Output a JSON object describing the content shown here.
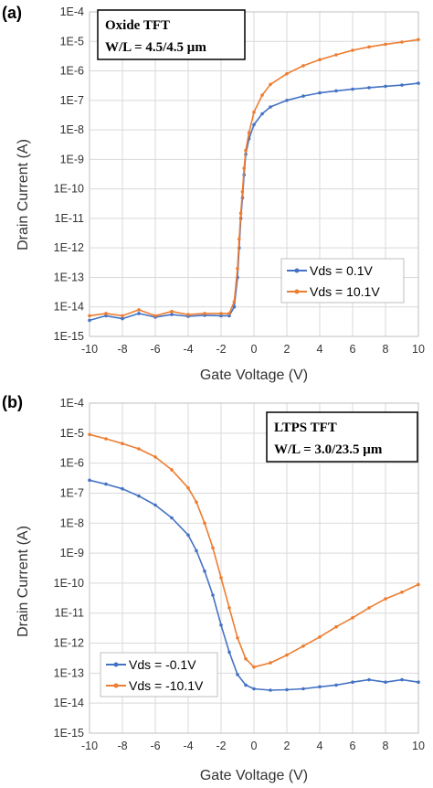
{
  "colors": {
    "series_blue": "#4472c4",
    "series_orange": "#ed7d31",
    "grid": "#d9d9d9"
  },
  "chart_data": [
    {
      "type": "line",
      "panel_label": "(a)",
      "xlabel": "Gate Voltage (V)",
      "ylabel": "Drain Current (A)",
      "xlim": [
        -10,
        10
      ],
      "ylim": [
        1e-15,
        0.0001
      ],
      "yscale": "log",
      "xticks": [
        "-10",
        "-8",
        "-6",
        "-4",
        "-2",
        "0",
        "2",
        "4",
        "6",
        "8",
        "10"
      ],
      "yticks": [
        "1E-15",
        "1E-14",
        "1E-13",
        "1E-12",
        "1E-11",
        "1E-10",
        "1E-9",
        "1E-8",
        "1E-7",
        "1E-6",
        "1E-5",
        "1E-4"
      ],
      "grid": true,
      "annotation": [
        "Oxide TFT",
        "W/L = 4.5/4.5 μm"
      ],
      "legend": {
        "placement": "lower-right",
        "entries": [
          "Vds = 0.1V",
          "Vds = 10.1V"
        ]
      },
      "series": [
        {
          "name": "Vds = 0.1V",
          "color": "#4472c4",
          "points": [
            [
              -10,
              3.5e-15
            ],
            [
              -9,
              5e-15
            ],
            [
              -8,
              4e-15
            ],
            [
              -7,
              6e-15
            ],
            [
              -6,
              4.5e-15
            ],
            [
              -5,
              5.5e-15
            ],
            [
              -4,
              4.8e-15
            ],
            [
              -3,
              5.2e-15
            ],
            [
              -2,
              5e-15
            ],
            [
              -1.5,
              5e-15
            ],
            [
              -1.2,
              1e-14
            ],
            [
              -1,
              1e-13
            ],
            [
              -0.9,
              1e-12
            ],
            [
              -0.8,
              1e-11
            ],
            [
              -0.7,
              5e-11
            ],
            [
              -0.6,
              3e-10
            ],
            [
              -0.5,
              1.5e-09
            ],
            [
              -0.3,
              5e-09
            ],
            [
              0,
              1.5e-08
            ],
            [
              0.5,
              3.5e-08
            ],
            [
              1,
              6e-08
            ],
            [
              2,
              1e-07
            ],
            [
              3,
              1.4e-07
            ],
            [
              4,
              1.8e-07
            ],
            [
              5,
              2.1e-07
            ],
            [
              6,
              2.4e-07
            ],
            [
              7,
              2.7e-07
            ],
            [
              8,
              3e-07
            ],
            [
              9,
              3.3e-07
            ],
            [
              10,
              3.8e-07
            ]
          ]
        },
        {
          "name": "Vds = 10.1V",
          "color": "#ed7d31",
          "points": [
            [
              -10,
              5e-15
            ],
            [
              -9,
              6e-15
            ],
            [
              -8,
              5e-15
            ],
            [
              -7,
              8e-15
            ],
            [
              -6,
              5e-15
            ],
            [
              -5,
              7e-15
            ],
            [
              -4,
              5.5e-15
            ],
            [
              -3,
              6e-15
            ],
            [
              -2,
              6e-15
            ],
            [
              -1.5,
              6e-15
            ],
            [
              -1.2,
              1.5e-14
            ],
            [
              -1,
              2e-13
            ],
            [
              -0.9,
              2e-12
            ],
            [
              -0.8,
              1.5e-11
            ],
            [
              -0.7,
              8e-11
            ],
            [
              -0.6,
              5e-10
            ],
            [
              -0.5,
              2e-09
            ],
            [
              -0.3,
              8e-09
            ],
            [
              0,
              4e-08
            ],
            [
              0.5,
              1.5e-07
            ],
            [
              1,
              3.5e-07
            ],
            [
              2,
              8e-07
            ],
            [
              3,
              1.5e-06
            ],
            [
              4,
              2.4e-06
            ],
            [
              5,
              3.5e-06
            ],
            [
              6,
              5e-06
            ],
            [
              7,
              6.5e-06
            ],
            [
              8,
              8e-06
            ],
            [
              9,
              9.5e-06
            ],
            [
              10,
              1.15e-05
            ]
          ]
        }
      ]
    },
    {
      "type": "line",
      "panel_label": "(b)",
      "xlabel": "Gate Voltage (V)",
      "ylabel": "Drain Current (A)",
      "xlim": [
        -10,
        10
      ],
      "ylim": [
        1e-15,
        0.0001
      ],
      "yscale": "log",
      "xticks": [
        "-10",
        "-8",
        "-6",
        "-4",
        "-2",
        "0",
        "2",
        "4",
        "6",
        "8",
        "10"
      ],
      "yticks": [
        "1E-15",
        "1E-14",
        "1E-13",
        "1E-12",
        "1E-11",
        "1E-10",
        "1E-9",
        "1E-8",
        "1E-7",
        "1E-6",
        "1E-5",
        "1E-4"
      ],
      "grid": true,
      "annotation": [
        "LTPS TFT",
        "W/L = 3.0/23.5 μm"
      ],
      "legend": {
        "placement": "lower-left",
        "entries": [
          "Vds = -0.1V",
          "Vds = -10.1V"
        ]
      },
      "series": [
        {
          "name": "Vds = -0.1V",
          "color": "#4472c4",
          "points": [
            [
              -10,
              2.7e-07
            ],
            [
              -9,
              2e-07
            ],
            [
              -8,
              1.4e-07
            ],
            [
              -7,
              8e-08
            ],
            [
              -6,
              4e-08
            ],
            [
              -5,
              1.5e-08
            ],
            [
              -4,
              4e-09
            ],
            [
              -3.5,
              1.2e-09
            ],
            [
              -3,
              2.5e-10
            ],
            [
              -2.5,
              4e-11
            ],
            [
              -2,
              4e-12
            ],
            [
              -1.5,
              5e-13
            ],
            [
              -1,
              9e-14
            ],
            [
              -0.5,
              4e-14
            ],
            [
              0,
              3e-14
            ],
            [
              1,
              2.7e-14
            ],
            [
              2,
              2.8e-14
            ],
            [
              3,
              3e-14
            ],
            [
              4,
              3.5e-14
            ],
            [
              5,
              4e-14
            ],
            [
              6,
              5e-14
            ],
            [
              7,
              6e-14
            ],
            [
              8,
              5e-14
            ],
            [
              9,
              6e-14
            ],
            [
              10,
              5e-14
            ]
          ]
        },
        {
          "name": "Vds = -10.1V",
          "color": "#ed7d31",
          "points": [
            [
              -10,
              9e-06
            ],
            [
              -9,
              6.5e-06
            ],
            [
              -8,
              4.5e-06
            ],
            [
              -7,
              3e-06
            ],
            [
              -6,
              1.6e-06
            ],
            [
              -5,
              6e-07
            ],
            [
              -4,
              1.5e-07
            ],
            [
              -3.5,
              5e-08
            ],
            [
              -3,
              1e-08
            ],
            [
              -2.5,
              1.5e-09
            ],
            [
              -2,
              1.5e-10
            ],
            [
              -1.5,
              1.5e-11
            ],
            [
              -1,
              1.5e-12
            ],
            [
              -0.5,
              3e-13
            ],
            [
              0,
              1.6e-13
            ],
            [
              1,
              2.2e-13
            ],
            [
              2,
              4e-13
            ],
            [
              3,
              8e-13
            ],
            [
              4,
              1.6e-12
            ],
            [
              5,
              3.5e-12
            ],
            [
              6,
              7e-12
            ],
            [
              7,
              1.5e-11
            ],
            [
              8,
              3e-11
            ],
            [
              9,
              5e-11
            ],
            [
              10,
              9e-11
            ]
          ]
        }
      ]
    }
  ]
}
